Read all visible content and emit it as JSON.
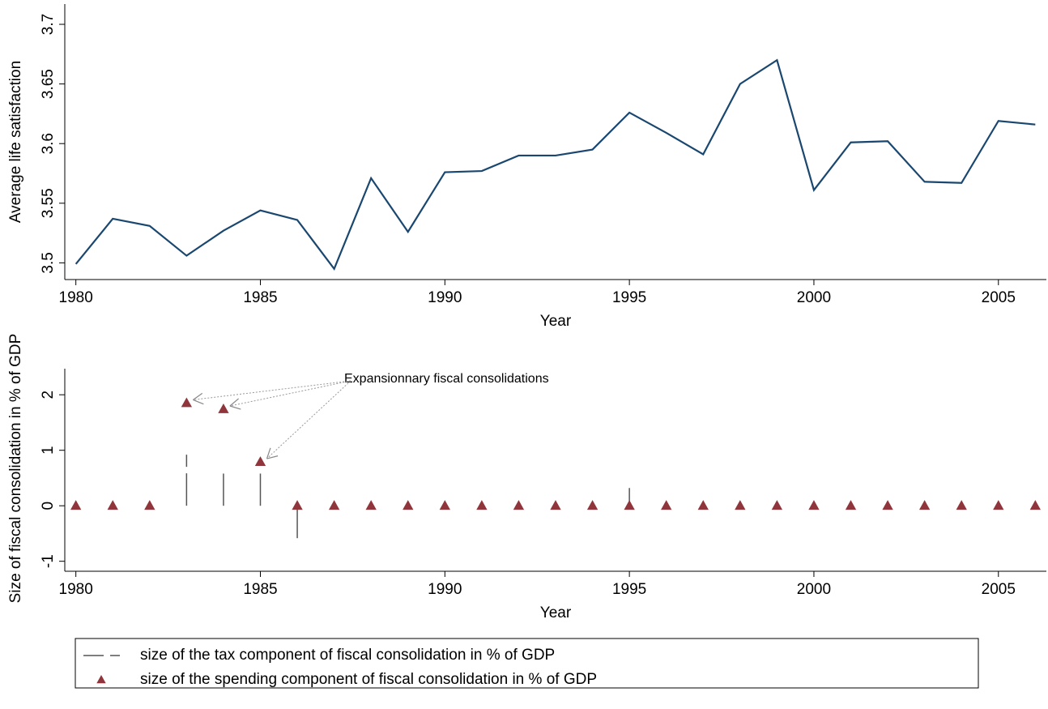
{
  "chart_data": [
    {
      "type": "line",
      "xlabel": "Year",
      "ylabel": "Average life satisfaction",
      "x": [
        1980,
        1981,
        1982,
        1983,
        1984,
        1985,
        1986,
        1987,
        1988,
        1989,
        1990,
        1991,
        1992,
        1993,
        1994,
        1995,
        1996,
        1997,
        1998,
        1999,
        2000,
        2001,
        2002,
        2003,
        2004,
        2005,
        2006
      ],
      "values": [
        3.499,
        3.537,
        3.531,
        3.506,
        3.527,
        3.544,
        3.536,
        3.495,
        3.571,
        3.526,
        3.576,
        3.577,
        3.59,
        3.59,
        3.595,
        3.626,
        3.609,
        3.591,
        3.65,
        3.67,
        3.561,
        3.601,
        3.602,
        3.568,
        3.567,
        3.619,
        3.616
      ],
      "color": "#1a476f",
      "xlim": [
        1979.7,
        2006.3
      ],
      "xticks": [
        1980,
        1985,
        1990,
        1995,
        2000,
        2005
      ],
      "ylim": [
        3.486,
        3.717
      ],
      "yticks": [
        3.5,
        3.55,
        3.6,
        3.65,
        3.7
      ]
    },
    {
      "type": "combo",
      "xlabel": "Year",
      "ylabel": "Size of fiscal consolidation in % of GDP",
      "x": [
        1980,
        1981,
        1982,
        1983,
        1984,
        1985,
        1986,
        1987,
        1988,
        1989,
        1990,
        1991,
        1992,
        1993,
        1994,
        1995,
        1996,
        1997,
        1998,
        1999,
        2000,
        2001,
        2002,
        2003,
        2004,
        2005,
        2006
      ],
      "series": [
        {
          "name": "size of the tax component of fiscal consolidation in % of GDP",
          "type": "spike",
          "color": "#555555",
          "values": [
            0,
            0,
            0,
            0.92,
            0.58,
            0.58,
            -0.7,
            0,
            0,
            0,
            0,
            0,
            0,
            0,
            0,
            0.32,
            0,
            0,
            0,
            0,
            0,
            0,
            0,
            0,
            0,
            0,
            0
          ]
        },
        {
          "name": "size of the spending component of fiscal consolidation in % of GDP",
          "type": "scatter",
          "color": "#90353b",
          "values": [
            0,
            0,
            0,
            1.85,
            1.74,
            0.79,
            0,
            0,
            0,
            0,
            0,
            0,
            0,
            0,
            0,
            0,
            0,
            0,
            0,
            0,
            0,
            0,
            0,
            0,
            0,
            0,
            0
          ]
        }
      ],
      "annotation": "Expansionnary fiscal consolidations",
      "xlim": [
        1979.7,
        2006.3
      ],
      "xticks": [
        1980,
        1985,
        1990,
        1995,
        2000,
        2005
      ],
      "ylim": [
        -1.18,
        2.47
      ],
      "yticks": [
        -1,
        0,
        1,
        2
      ]
    }
  ]
}
